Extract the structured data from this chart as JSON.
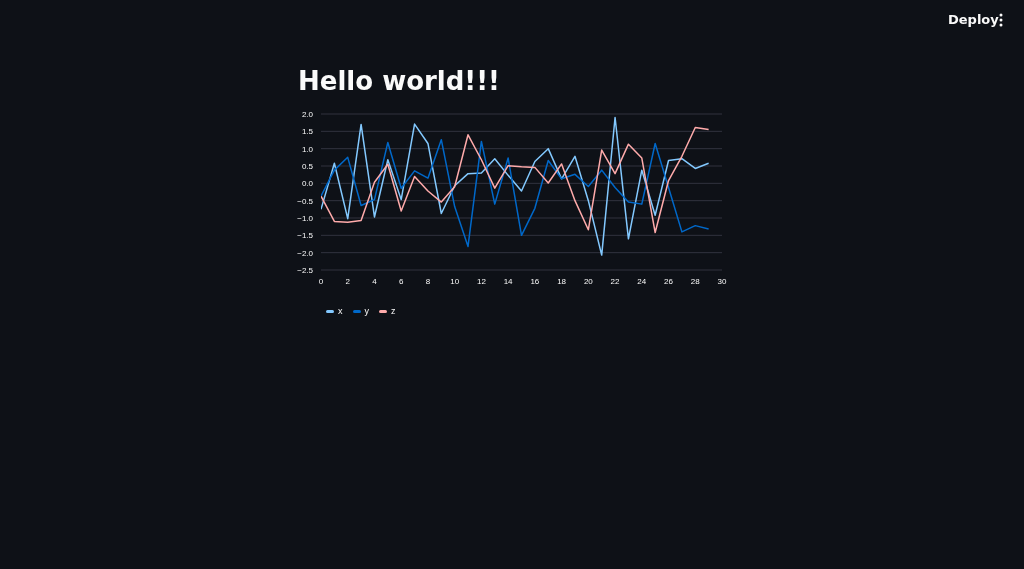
{
  "chart_data": {
    "type": "line",
    "title": "Hello world!!!",
    "annotations": [
      "Deploy"
    ],
    "x": [
      0,
      1,
      2,
      3,
      4,
      5,
      6,
      7,
      8,
      9,
      10,
      11,
      12,
      13,
      14,
      15,
      16,
      17,
      18,
      19,
      20,
      21,
      22,
      23,
      24,
      25,
      26,
      27,
      28,
      29
    ],
    "series": [
      {
        "name": "x",
        "color": "#83c9ff",
        "values": [
          -0.75,
          0.58,
          -1.02,
          1.7,
          -0.97,
          0.68,
          -0.47,
          1.71,
          1.15,
          -0.87,
          -0.07,
          0.28,
          0.3,
          0.71,
          0.23,
          -0.22,
          0.63,
          1.0,
          0.13,
          0.78,
          -0.5,
          -2.07,
          1.9,
          -1.6,
          0.38,
          -0.92,
          0.66,
          0.71,
          0.43,
          0.58
        ]
      },
      {
        "name": "y",
        "color": "#0068c9",
        "values": [
          -0.37,
          0.38,
          0.75,
          -0.64,
          -0.47,
          1.18,
          -0.14,
          0.36,
          0.15,
          1.26,
          -0.67,
          -1.82,
          1.21,
          -0.6,
          0.73,
          -1.5,
          -0.72,
          0.66,
          0.13,
          0.26,
          -0.09,
          0.38,
          -0.12,
          -0.54,
          -0.6,
          1.15,
          -0.12,
          -1.4,
          -1.22,
          -1.32
        ]
      },
      {
        "name": "z",
        "color": "#ffabab",
        "values": [
          -0.37,
          -1.1,
          -1.12,
          -1.07,
          0.03,
          0.55,
          -0.8,
          0.2,
          -0.22,
          -0.54,
          -0.1,
          1.4,
          0.68,
          -0.14,
          0.51,
          0.48,
          0.46,
          0.01,
          0.56,
          -0.5,
          -1.34,
          0.96,
          0.28,
          1.13,
          0.73,
          -1.42,
          0.08,
          0.78,
          1.61,
          1.55
        ]
      }
    ],
    "xlim": [
      0,
      30
    ],
    "xticks": [
      0,
      2,
      4,
      6,
      8,
      10,
      12,
      14,
      16,
      18,
      20,
      22,
      24,
      26,
      28,
      30
    ],
    "ylim": [
      -2.5,
      2.0
    ],
    "yticks": [
      {
        "value": -2.5,
        "label": "−2.5"
      },
      {
        "value": -2.0,
        "label": "−2.0"
      },
      {
        "value": -1.5,
        "label": "−1.5"
      },
      {
        "value": -1.0,
        "label": "−1.0"
      },
      {
        "value": -0.5,
        "label": "−0.5"
      },
      {
        "value": 0,
        "label": "0.0"
      },
      {
        "value": 0.5,
        "label": "0.5"
      },
      {
        "value": 1.0,
        "label": "1.0"
      },
      {
        "value": 1.5,
        "label": "1.5"
      },
      {
        "value": 2.0,
        "label": "2.0"
      }
    ],
    "grid": "y",
    "legend": "bottom left",
    "marker": "none",
    "line_style": "solid"
  }
}
